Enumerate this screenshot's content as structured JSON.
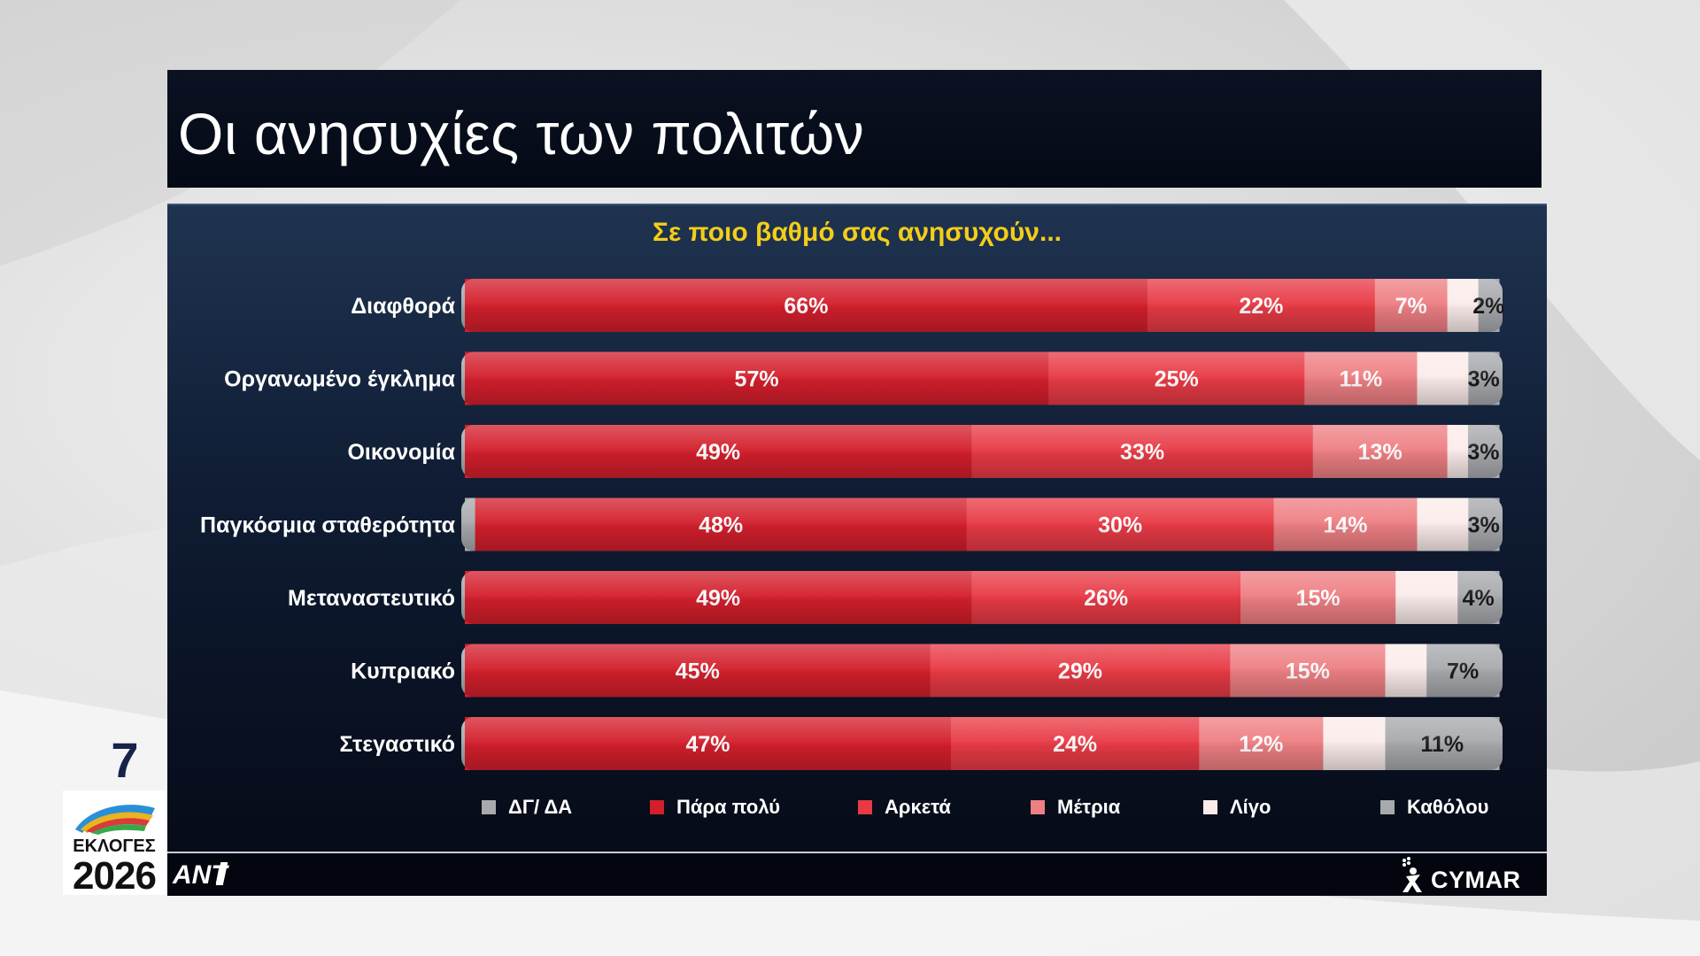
{
  "header": {
    "title": "Οι ανησυχίες των πολιτών"
  },
  "page": {
    "number": "7"
  },
  "badge": {
    "line1": "ΕΚΛΟΓΕΣ",
    "line2": "2026"
  },
  "logos": {
    "broadcaster": "ANT1",
    "pollster": "CYMAR"
  },
  "colors": {
    "panel_background": "#0f1c33",
    "subtitle": "#f3cd1a",
    "very_much": "#d31f2c",
    "quite": "#e83a45",
    "moderately": "#ee7f83",
    "little": "#fbecea",
    "not_at_all": "#a7a9ad",
    "dk_na": "#a7a9ad"
  },
  "chart_data": {
    "type": "bar",
    "orientation": "horizontal",
    "stacked": true,
    "title": "Σε ποιο βαθμό σας ανησυχούν...",
    "categories": [
      "Διαφθορά",
      "Οργανωμένο έγκλημα",
      "Οικονομία",
      "Παγκόσμια σταθερότητα",
      "Μεταναστευτικό",
      "Κυπριακό",
      "Στεγαστικό"
    ],
    "series": [
      {
        "name": "ΔΓ/ ΔΑ",
        "color": "#a7a9ad",
        "values": [
          0,
          0,
          0,
          1,
          0,
          0,
          0
        ],
        "labels": [
          "",
          "",
          "",
          "",
          "",
          "",
          ""
        ]
      },
      {
        "name": "Πάρα πολύ",
        "color": "#d31f2c",
        "values": [
          66,
          57,
          49,
          48,
          49,
          45,
          47
        ],
        "labels": [
          "66%",
          "57%",
          "49%",
          "48%",
          "49%",
          "45%",
          "47%"
        ]
      },
      {
        "name": "Αρκετά",
        "color": "#e83a45",
        "values": [
          22,
          25,
          33,
          30,
          26,
          29,
          24
        ],
        "labels": [
          "22%",
          "25%",
          "33%",
          "30%",
          "26%",
          "29%",
          "24%"
        ]
      },
      {
        "name": "Μέτρια",
        "color": "#ee7f83",
        "values": [
          7,
          11,
          13,
          14,
          15,
          15,
          12
        ],
        "labels": [
          "7%",
          "11%",
          "13%",
          "14%",
          "15%",
          "15%",
          "12%"
        ]
      },
      {
        "name": "Λίγο",
        "color": "#fbecea",
        "values": [
          3,
          5,
          2,
          5,
          6,
          4,
          6
        ],
        "labels": [
          "",
          "",
          "",
          "",
          "",
          "",
          ""
        ]
      },
      {
        "name": "Καθόλου",
        "color": "#a7a9ad",
        "values": [
          2,
          3,
          3,
          3,
          4,
          7,
          11
        ],
        "labels": [
          "2%",
          "3%",
          "3%",
          "3%",
          "4%",
          "7%",
          "11%"
        ]
      }
    ],
    "legend_position": "bottom",
    "grid": false
  }
}
